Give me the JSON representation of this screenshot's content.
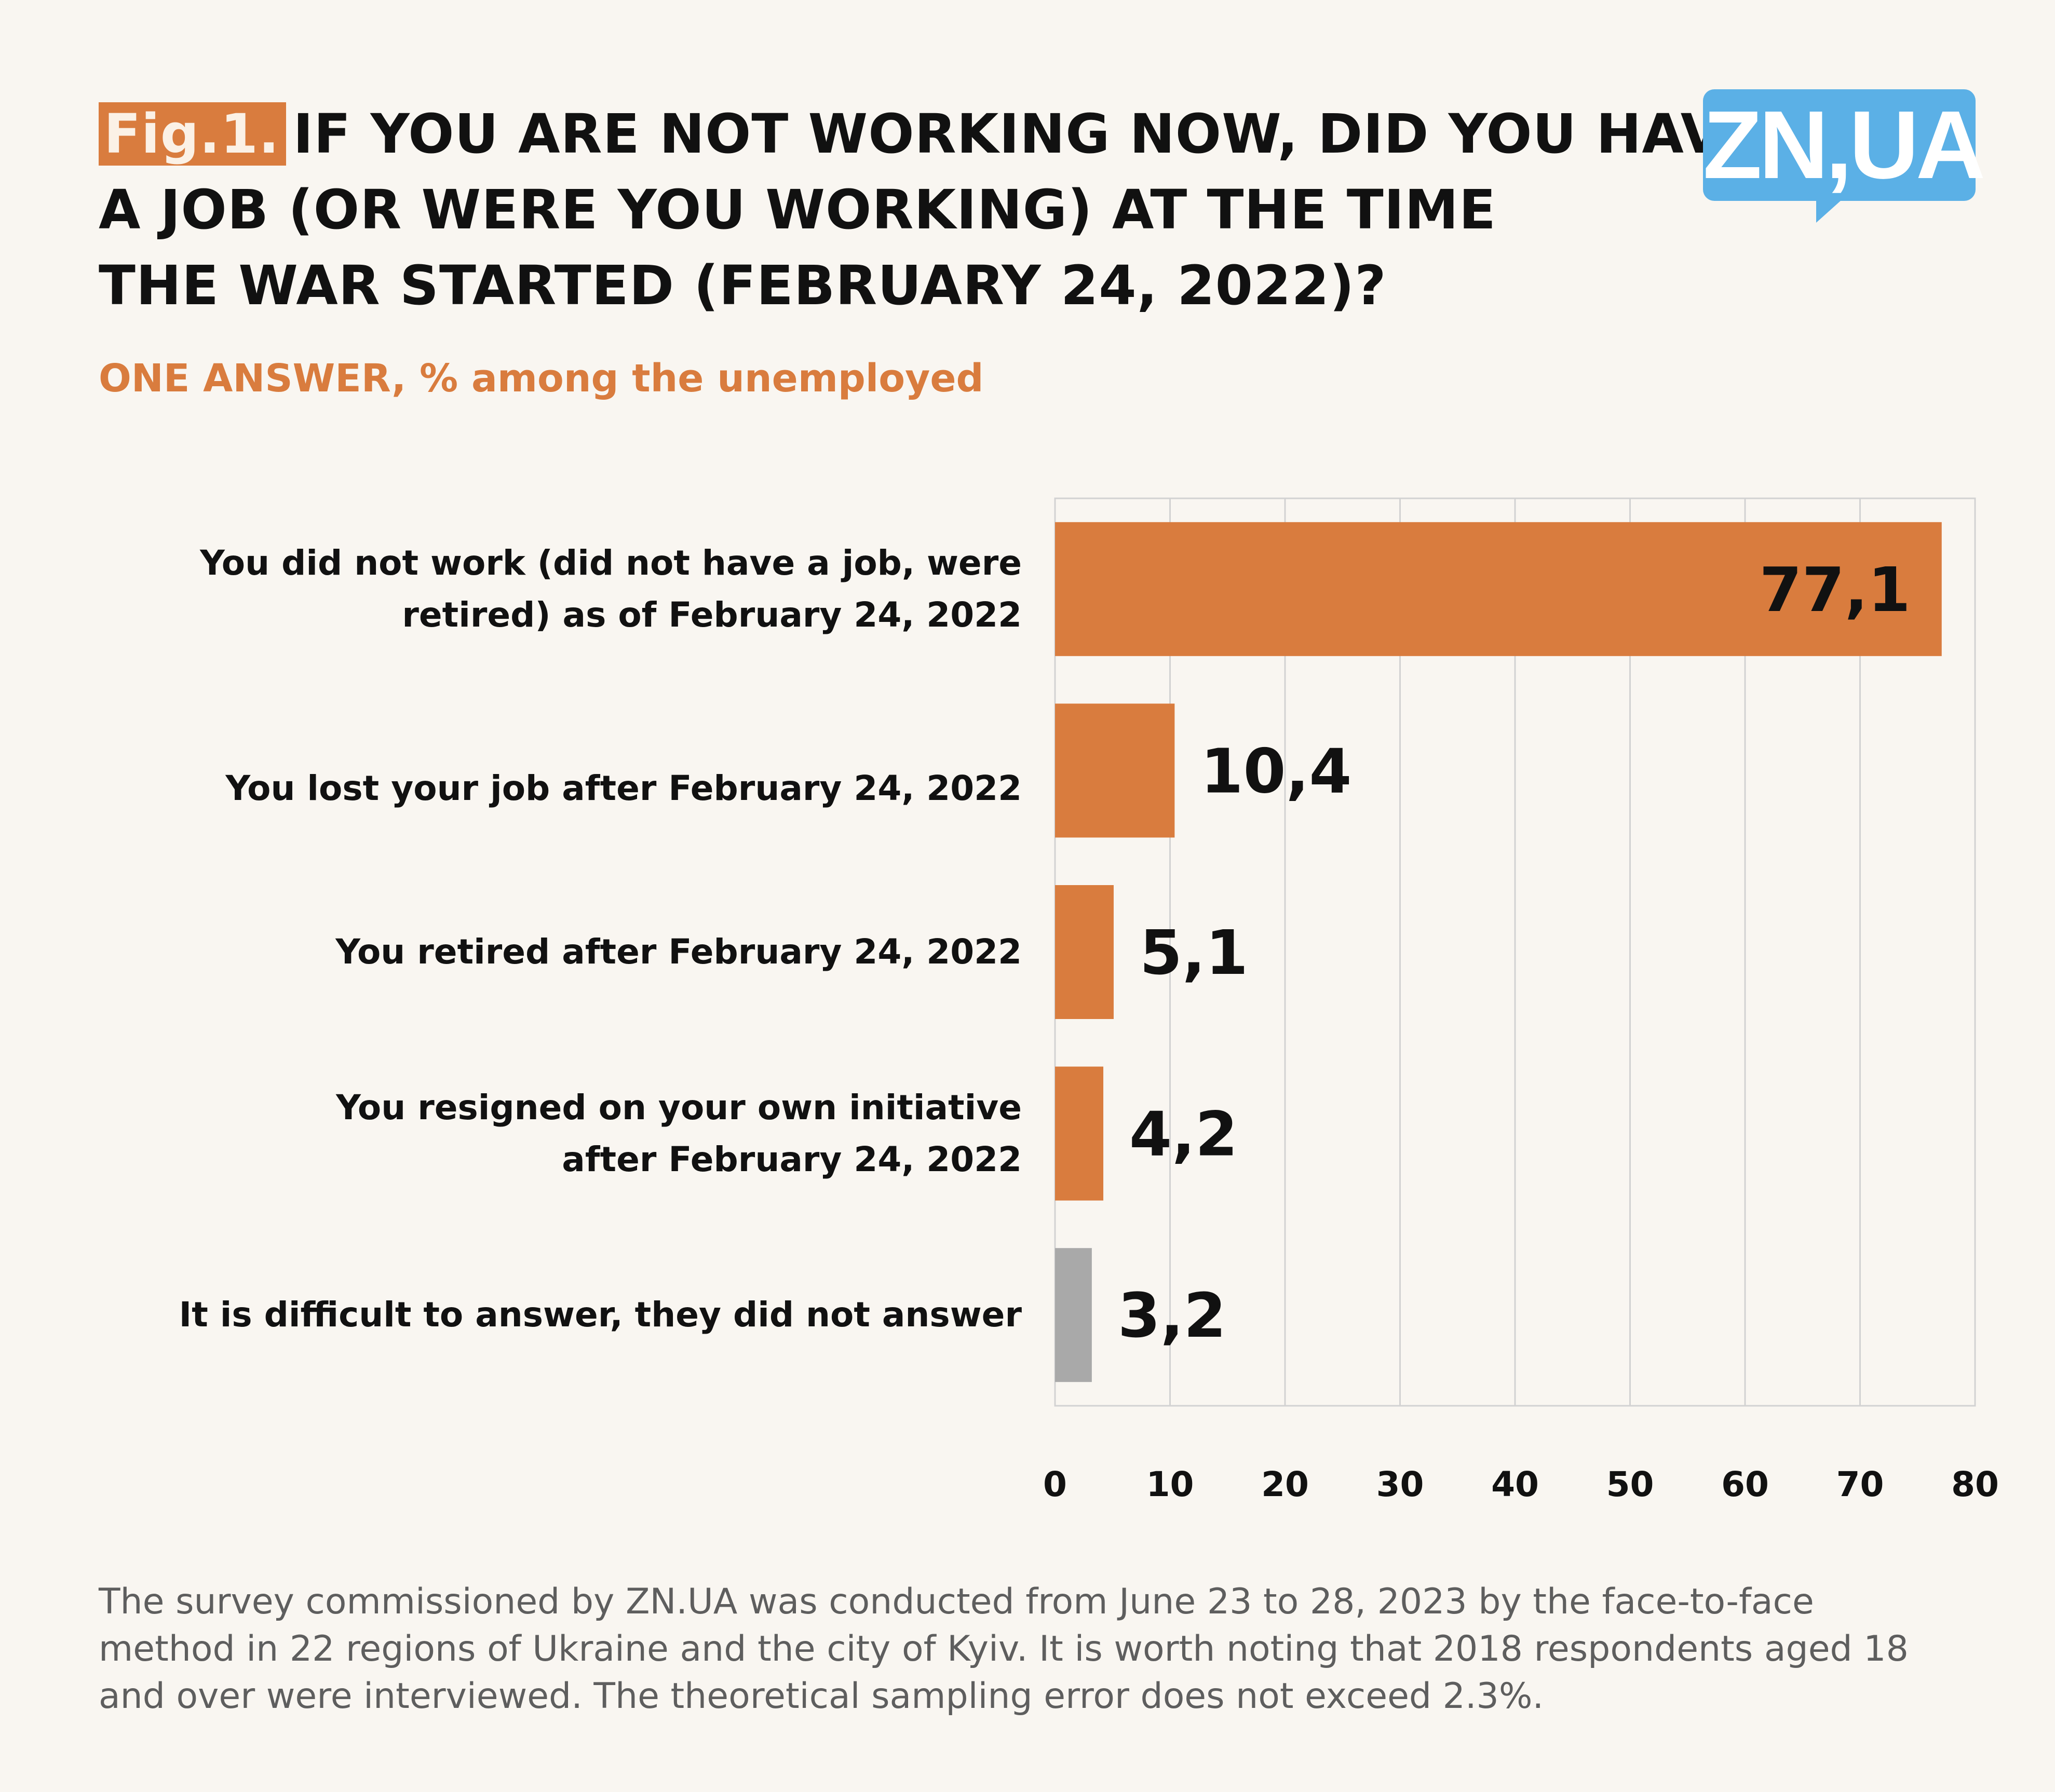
{
  "header": {
    "fig_tag": "Fig.1.",
    "title_line1": "IF YOU ARE NOT WORKING NOW, DID YOU HAVE",
    "title_line2": "A JOB (OR WERE YOU WORKING) AT THE TIME",
    "title_line3": "THE WAR STARTED (FEBRUARY 24, 2022)?",
    "subtitle": "ONE ANSWER, % among the unemployed"
  },
  "logo": {
    "text": "ZN,UA",
    "color": "#5bb0e6",
    "icon": "speech-bubble-logo"
  },
  "chart_data": {
    "type": "bar",
    "orientation": "horizontal",
    "categories": [
      "You did not work (did not have a job, were retired) as of February 24, 2022",
      "You lost your job after February 24, 2022",
      "You retired after February 24, 2022",
      "You resigned on your own initiative after February 24, 2022",
      "It is difficult to answer, they did not answer"
    ],
    "category_lines": [
      [
        "You did not work (did not have a job, were",
        "retired) as of February 24, 2022"
      ],
      [
        "You lost your job after February 24, 2022"
      ],
      [
        "You retired after February 24, 2022"
      ],
      [
        "You resigned on your own initiative",
        "after February 24, 2022"
      ],
      [
        "It is difficult to answer, they did not answer"
      ]
    ],
    "values": [
      77.1,
      10.4,
      5.1,
      4.2,
      3.2
    ],
    "value_labels": [
      "77,1",
      "10,4",
      "5,1",
      "4,2",
      "3,2"
    ],
    "bar_colors": [
      "#d97c3e",
      "#d97c3e",
      "#d97c3e",
      "#d97c3e",
      "#a9a9a9"
    ],
    "xlim": [
      0,
      80
    ],
    "xticks": [
      0,
      10,
      20,
      30,
      40,
      50,
      60,
      70,
      80
    ],
    "grid": true,
    "legend": "none"
  },
  "footnote": {
    "line1": "The survey commissioned by ZN.UA was conducted from June 23 to 28, 2023 by the face-to-face",
    "line2": "method in 22 regions of Ukraine and the city of Kyiv. It is worth noting that 2018 respondents aged 18",
    "line3": "and over were interviewed. The theoretical sampling error does not exceed 2.3%."
  }
}
